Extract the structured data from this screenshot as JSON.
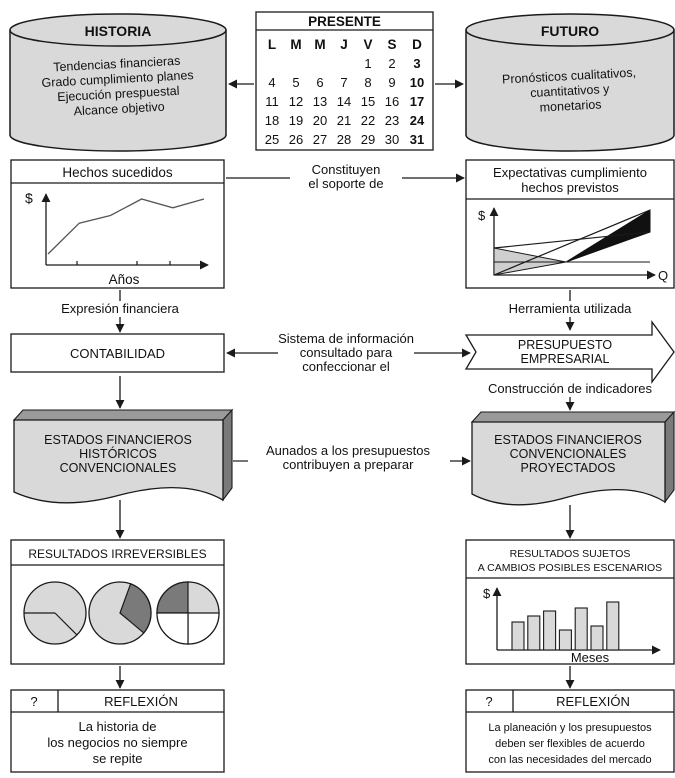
{
  "historia": {
    "title": "HISTORIA",
    "lines": [
      "Tendencias financieras",
      "Grado cumplimiento planes",
      "Ejecución prespuestal",
      "Alcance objetivo"
    ]
  },
  "futuro": {
    "title": "FUTURO",
    "lines": [
      "Pronósticos cualitativos,",
      "cuantitativos y",
      "monetarios"
    ]
  },
  "presente": {
    "title": "PRESENTE",
    "days": [
      "L",
      "M",
      "M",
      "J",
      "V",
      "S",
      "D"
    ],
    "rows": [
      [
        "",
        "",
        "",
        "",
        "1",
        "2",
        "3"
      ],
      [
        "4",
        "5",
        "6",
        "7",
        "8",
        "9",
        "10"
      ],
      [
        "11",
        "12",
        "13",
        "14",
        "15",
        "16",
        "17"
      ],
      [
        "18",
        "19",
        "20",
        "21",
        "22",
        "23",
        "24"
      ],
      [
        "25",
        "26",
        "27",
        "28",
        "29",
        "30",
        "31"
      ]
    ]
  },
  "hechos": {
    "title": "Hechos sucedidos",
    "y_label": "$",
    "x_label": "Años",
    "values": [
      10,
      38,
      45,
      60,
      52,
      60
    ]
  },
  "expectativas": {
    "title_lines": [
      "Expectativas cumplimiento",
      "hechos previstos"
    ],
    "y_label": "$",
    "x_label": "Q"
  },
  "constituyen": [
    "Constituyen",
    "el soporte de"
  ],
  "expresion": "Expresión financiera",
  "herramienta": "Herramienta utilizada",
  "contabilidad": "CONTABILIDAD",
  "sistema": [
    "Sistema de información",
    "consultado para",
    "confeccionar el"
  ],
  "presupuesto": [
    "PRESUPUESTO",
    "EMPRESARIAL"
  ],
  "construccion": "Construcción de indicadores",
  "estados_hist": [
    "ESTADOS FINANCIEROS",
    "HISTÓRICOS",
    "CONVENCIONALES"
  ],
  "aunados": [
    "Aunados a los presupuestos",
    "contribuyen a preparar"
  ],
  "estados_proy": [
    "ESTADOS FINANCIEROS",
    "CONVENCIONALES",
    "PROYECTADOS"
  ],
  "resultados_irr": "RESULTADOS IRREVERSIBLES",
  "resultados_suj": [
    "RESULTADOS SUJETOS",
    "A CAMBIOS POSIBLES ESCENARIOS"
  ],
  "barchart": {
    "y_label": "$",
    "x_label": "Meses",
    "values": [
      28,
      34,
      39,
      20,
      42,
      24,
      48
    ]
  },
  "reflexion_left": {
    "q": "?",
    "title": "REFLEXIÓN",
    "lines": [
      "La historia de",
      "los negocios no siempre",
      "se repite"
    ]
  },
  "reflexion_right": {
    "q": "?",
    "title": "REFLEXIÓN",
    "lines": [
      "La planeación y los presupuestos",
      "deben ser flexibles de acuerdo",
      "con las necesidades del mercado"
    ]
  },
  "colors": {
    "fill_gray": "#d9d9d9",
    "dark_gray": "#7a7a7a",
    "stroke": "#1a1a1a"
  }
}
